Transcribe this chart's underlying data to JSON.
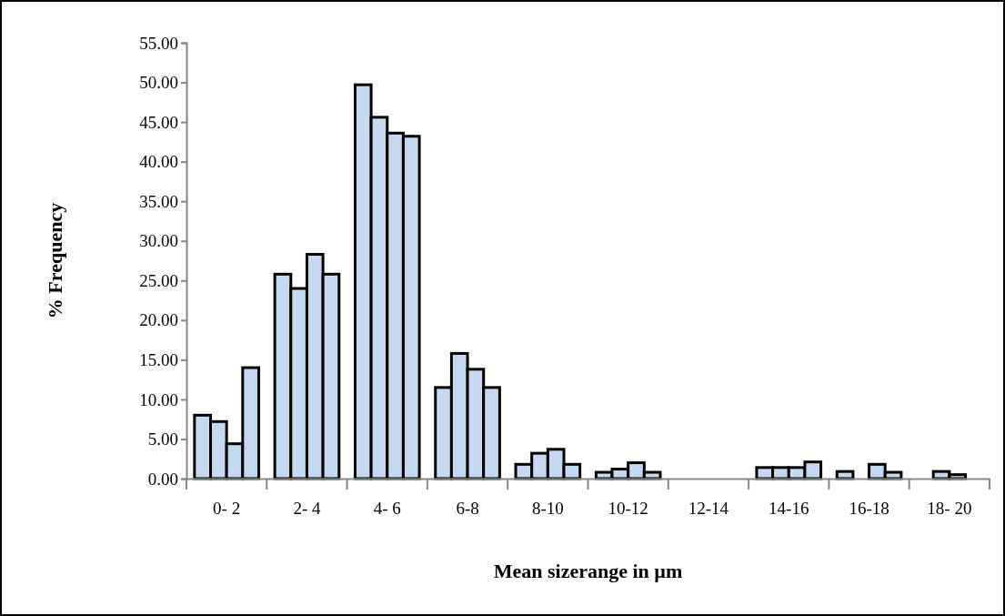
{
  "chart_data": {
    "type": "bar",
    "xlabel": "Mean sizerange in µm",
    "ylabel": "% Frequency",
    "categories": [
      "0- 2",
      "2- 4",
      "4- 6",
      "6-8",
      "8-10",
      "10-12",
      "12-14",
      "14-16",
      "16-18",
      "18- 20"
    ],
    "series": [
      {
        "color": "#c6d9f0",
        "values": [
          8.0,
          25.8,
          49.7,
          11.5,
          1.8,
          0.8,
          0,
          1.4,
          0.9,
          0
        ]
      },
      {
        "color": "#c6d9f0",
        "values": [
          7.2,
          24.0,
          45.6,
          15.8,
          3.2,
          1.2,
          0,
          1.4,
          0,
          0.9
        ]
      },
      {
        "color": "#c6d9f0",
        "values": [
          4.4,
          28.3,
          43.6,
          13.8,
          3.7,
          2.0,
          0,
          1.4,
          1.8,
          0.5
        ]
      },
      {
        "color": "#c6d9f0",
        "values": [
          14.0,
          25.8,
          43.2,
          11.5,
          1.8,
          0.8,
          0,
          2.1,
          0.8,
          0
        ]
      }
    ],
    "ylim": [
      0,
      55
    ],
    "yticks": [
      {
        "value": 0,
        "label": "0.00"
      },
      {
        "value": 5,
        "label": "5.00"
      },
      {
        "value": 10,
        "label": "10.00"
      },
      {
        "value": 15,
        "label": "15.00"
      },
      {
        "value": 20,
        "label": "20.00"
      },
      {
        "value": 25,
        "label": "25.00"
      },
      {
        "value": 30,
        "label": "30.00"
      },
      {
        "value": 35,
        "label": "35.00"
      },
      {
        "value": 40,
        "label": "40.00"
      },
      {
        "value": 45,
        "label": "45.00"
      },
      {
        "value": 50,
        "label": "50.00"
      },
      {
        "value": 55,
        "label": "55.00"
      }
    ],
    "grid": false
  }
}
